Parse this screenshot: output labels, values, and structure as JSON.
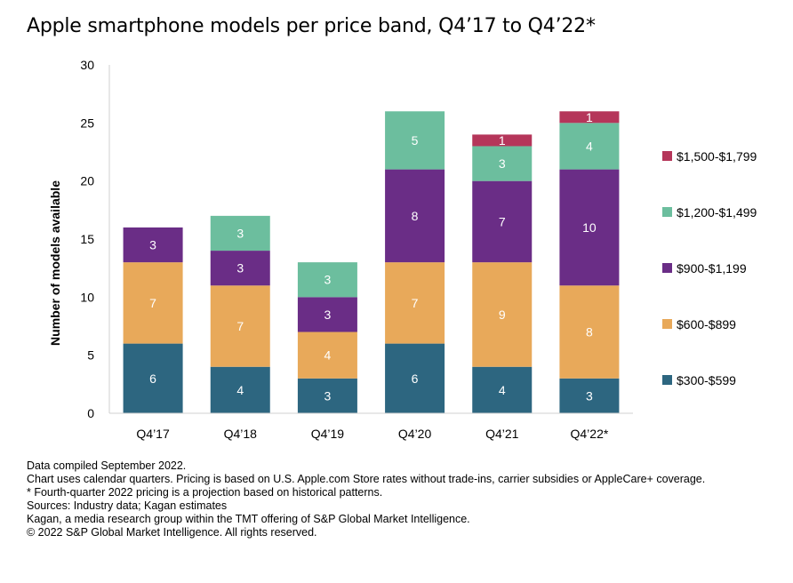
{
  "chart_data": {
    "type": "bar",
    "stacked": true,
    "title": "Apple smartphone models per price band, Q4’17 to Q4’22*",
    "xlabel": "",
    "ylabel": "Number of models available",
    "ylim": [
      0,
      30
    ],
    "yticks": [
      0,
      5,
      10,
      15,
      20,
      25,
      30
    ],
    "grid": false,
    "legend_position": "right",
    "categories": [
      "Q4’17",
      "Q4’18",
      "Q4’19",
      "Q4’20",
      "Q4’21",
      "Q4’22*"
    ],
    "series": [
      {
        "name": "$300-$599",
        "color": "#2d6680",
        "values": [
          6,
          4,
          3,
          6,
          4,
          3
        ]
      },
      {
        "name": "$600-$899",
        "color": "#e8a95a",
        "values": [
          7,
          7,
          4,
          7,
          9,
          8
        ]
      },
      {
        "name": "$900-$1,199",
        "color": "#6a2d86",
        "values": [
          3,
          3,
          3,
          8,
          7,
          10
        ]
      },
      {
        "name": "$1,200-$1,499",
        "color": "#6cbe9e",
        "values": [
          0,
          3,
          3,
          5,
          3,
          4
        ]
      },
      {
        "name": "$1,500-$1,799",
        "color": "#b5365a",
        "values": [
          0,
          0,
          0,
          0,
          1,
          1
        ]
      }
    ]
  },
  "notes": {
    "compiled": "Data compiled September 2022.",
    "calendar": "Chart uses calendar quarters. Pricing is based on U.S. Apple.com Store rates without trade-ins, carrier subsidies or AppleCare+ coverage.",
    "projection": "* Fourth-quarter 2022 pricing is a projection based on historical patterns.",
    "sources": "Sources: Industry data; Kagan estimates",
    "kagan": "Kagan, a media research group within the TMT offering of S&P Global Market Intelligence.",
    "copyright": "© 2022 S&P Global Market Intelligence. All rights reserved."
  }
}
